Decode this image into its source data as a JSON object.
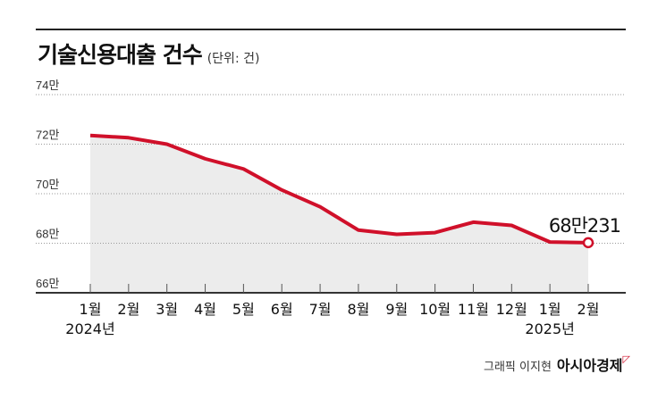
{
  "header": {
    "title": "기술신용대출 건수",
    "unit": "(단위: 건)"
  },
  "credit": {
    "graphic": "그래픽 이지현",
    "brand": "아시아경제"
  },
  "colors": {
    "line": "#d0102a",
    "area": "#ececec",
    "grid": "#999999"
  },
  "chart_data": {
    "type": "area",
    "title": "기술신용대출 건수",
    "ylabel": "(단위: 건)",
    "categories": [
      "1월",
      "2월",
      "3월",
      "4월",
      "5월",
      "6월",
      "7월",
      "8월",
      "9월",
      "10월",
      "11월",
      "12월",
      "1월",
      "2월"
    ],
    "year_labels": [
      {
        "index": 0,
        "label": "2024년"
      },
      {
        "index": 12,
        "label": "2025년"
      }
    ],
    "series": [
      {
        "values": [
          723500,
          722600,
          720000,
          714100,
          710000,
          701500,
          694700,
          685300,
          683600,
          684300,
          688500,
          687200,
          680500,
          680231
        ]
      }
    ],
    "yticks": [
      660000,
      680000,
      700000,
      720000,
      740000
    ],
    "ytick_labels": [
      "66만",
      "68만",
      "70만",
      "72만",
      "74만"
    ],
    "ylim": [
      660000,
      740000
    ],
    "grid": true,
    "annotation": {
      "index": 13,
      "text": "68만231"
    }
  }
}
